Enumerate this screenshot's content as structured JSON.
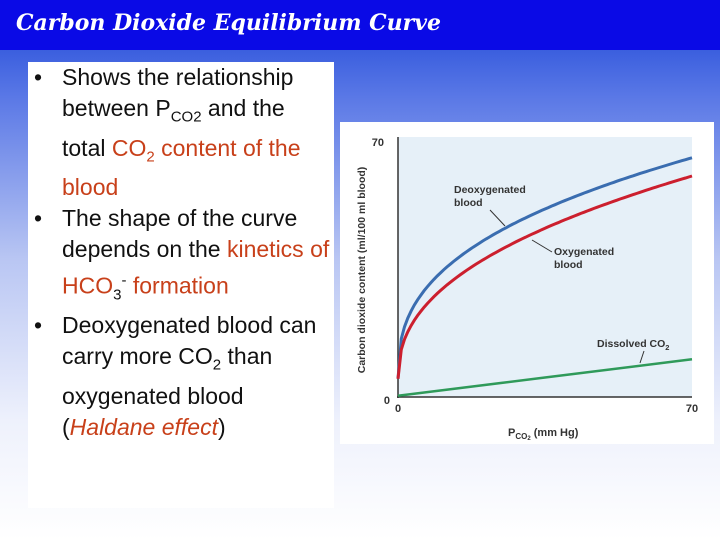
{
  "slide": {
    "title": "Carbon Dioxide Equilibrium Curve",
    "bullets": {
      "b1": {
        "lead": "Shows the relationship between P",
        "sub1": "CO2",
        "mid": " and the total ",
        "co2_main": "CO",
        "co2_sub": "2",
        "tail": " content of the blood"
      },
      "b2": {
        "lead": "The shape of the curve depends on the ",
        "kin": "kinetics of HCO",
        "kin_sub": "3",
        "kin_sup": "-",
        "tail": " formation"
      },
      "b3": {
        "lead": "Deoxygenated blood can carry more CO",
        "lead_sub": "2",
        "mid": " than oxygenated blood (",
        "emph": "Haldane effect",
        "tail": ")"
      }
    }
  },
  "figure": {
    "colors": {
      "deoxygenated": "#3a6db0",
      "oxygenated": "#cc1f2e",
      "dissolved": "#2f9a5a",
      "axis": "#333333"
    },
    "y_axis_label": "Carbon dioxide content (ml/100 ml blood)",
    "x_axis_label_main": "P",
    "x_axis_label_sub": "CO",
    "x_axis_label_sub2": "2",
    "x_axis_label_unit": " (mm Hg)",
    "y_tick_top": "70",
    "y_tick_bottom": "0",
    "x_tick_left": "0",
    "x_tick_right": "70",
    "label_deoxygenated_1": "Deoxygenated",
    "label_deoxygenated_2": "blood",
    "label_oxygenated_1": "Oxygenated",
    "label_oxygenated_2": "blood",
    "label_dissolved": "Dissolved CO",
    "label_dissolved_sub": "2"
  }
}
